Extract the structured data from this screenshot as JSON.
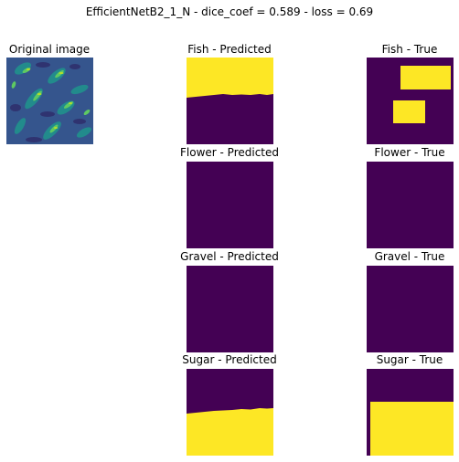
{
  "figure": {
    "title": "EfficientNetB2_1_N - dice_coef = 0.589 - loss = 0.69"
  },
  "original": {
    "title": "Original image"
  },
  "rows": [
    {
      "predicted_title": "Fish - Predicted",
      "true_title": "Fish - True"
    },
    {
      "predicted_title": "Flower - Predicted",
      "true_title": "Flower - True"
    },
    {
      "predicted_title": "Gravel - Predicted",
      "true_title": "Gravel - True"
    },
    {
      "predicted_title": "Sugar - Predicted",
      "true_title": "Sugar - True"
    }
  ],
  "colors": {
    "mask_background": "#440154",
    "mask_foreground": "#fde725",
    "original_base": "#3b528b"
  }
}
